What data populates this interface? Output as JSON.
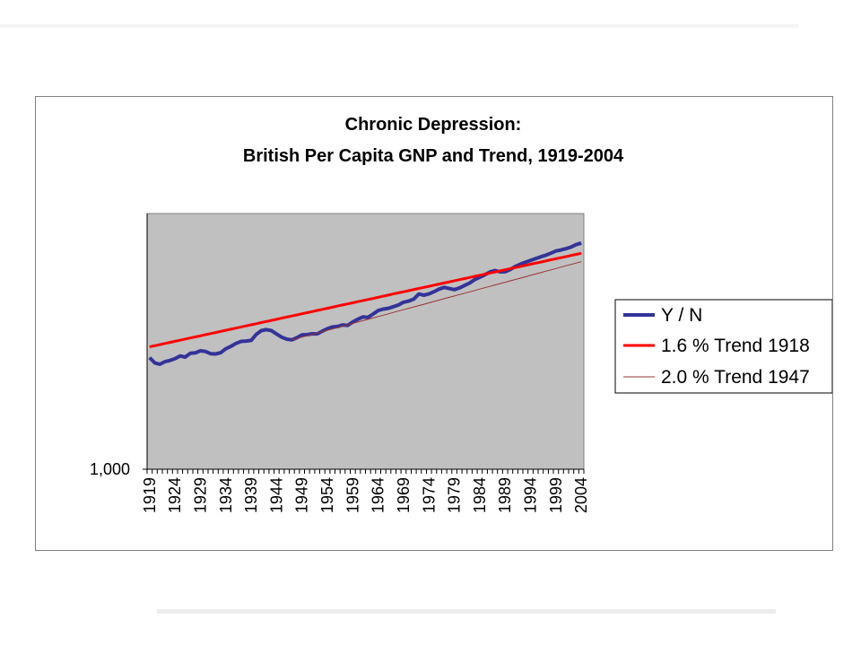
{
  "chart_data": {
    "type": "line",
    "title": "Chronic Depression:",
    "subtitle": "British Per Capita GNP and Trend, 1919-2004",
    "xlabel": "",
    "ylabel": "",
    "y_scale": "log",
    "y_tick_labels": [
      "1,000"
    ],
    "x_tick_labels": [
      "1919",
      "1924",
      "1929",
      "1934",
      "1939",
      "1944",
      "1949",
      "1954",
      "1959",
      "1964",
      "1969",
      "1974",
      "1979",
      "1984",
      "1989",
      "1994",
      "1999",
      "2004"
    ],
    "plot_background": "#c0c0c0",
    "grid": false,
    "legend_position": "right",
    "x_start": 1919,
    "x_end": 2004,
    "y_min": 1000,
    "y_max": 40000,
    "series": [
      {
        "name": "Y / N",
        "color": "#333399",
        "style": "thick",
        "values": [
          5004,
          4642,
          4548,
          4719,
          4798,
          4925,
          5126,
          5045,
          5326,
          5363,
          5524,
          5474,
          5298,
          5279,
          5370,
          5689,
          5883,
          6147,
          6325,
          6359,
          6412,
          7006,
          7390,
          7497,
          7392,
          7032,
          6725,
          6530,
          6462,
          6668,
          6951,
          6966,
          7056,
          7047,
          7331,
          7595,
          7790,
          7838,
          8010,
          7974,
          8368,
          8711,
          9006,
          8942,
          9380,
          9866,
          10085,
          10199,
          10434,
          10698,
          11135,
          11311,
          11640,
          12520,
          12323,
          12544,
          12950,
          13454,
          13791,
          13562,
          13342,
          13672,
          14174,
          14664,
          15431,
          15927,
          16525,
          17211,
          17593,
          17247,
          17268,
          17836,
          18659,
          19284,
          19821,
          20356,
          20893,
          21448,
          21918,
          22584,
          23305,
          23640,
          24119,
          24695,
          25564,
          26139
        ]
      },
      {
        "name": "1.6 % Trend 1918",
        "color": "#ff0000",
        "style": "medium",
        "values": [
          5850,
          5944,
          6039,
          6136,
          6234,
          6334,
          6435,
          6538,
          6643,
          6749,
          6857,
          6967,
          7078,
          7191,
          7307,
          7424,
          7542,
          7663,
          7786,
          7910,
          8037,
          8165,
          8296,
          8429,
          8564,
          8701,
          8840,
          8981,
          9125,
          9271,
          9419,
          9570,
          9723,
          9879,
          10037,
          10197,
          10360,
          10526,
          10695,
          10866,
          11040,
          11216,
          11396,
          11578,
          11763,
          11952,
          12143,
          12337,
          12535,
          12735,
          12939,
          13146,
          13356,
          13570,
          13787,
          14008,
          14232,
          14460,
          14691,
          14926,
          15165,
          15408,
          15654,
          15905,
          16159,
          16418,
          16680,
          16947,
          17219,
          17494,
          17774,
          18058,
          18347,
          18641,
          18939,
          19242,
          19550,
          19863,
          20181,
          20504,
          20832,
          21165,
          21504,
          21848,
          22197,
          22552
        ]
      },
      {
        "name": "2.0 % Trend 1947",
        "color": "#993333",
        "style": "thin",
        "values": [
          null,
          null,
          null,
          null,
          null,
          null,
          null,
          null,
          null,
          null,
          null,
          null,
          null,
          null,
          null,
          null,
          null,
          null,
          null,
          null,
          null,
          null,
          null,
          null,
          null,
          null,
          null,
          null,
          6462,
          6591,
          6723,
          6858,
          6995,
          7135,
          7278,
          7423,
          7572,
          7723,
          7877,
          8035,
          8196,
          8360,
          8527,
          8697,
          8871,
          9049,
          9230,
          9414,
          9603,
          9795,
          9991,
          10190,
          10394,
          10602,
          10814,
          11030,
          11251,
          11476,
          11706,
          11940,
          12179,
          12422,
          12671,
          12924,
          13183,
          13446,
          13715,
          13989,
          14269,
          14555,
          14846,
          15143,
          15446,
          15755,
          16070,
          16391,
          16719,
          17053,
          17394,
          17742,
          18097,
          18459,
          18828,
          19205,
          19589,
          19981
        ]
      }
    ]
  }
}
